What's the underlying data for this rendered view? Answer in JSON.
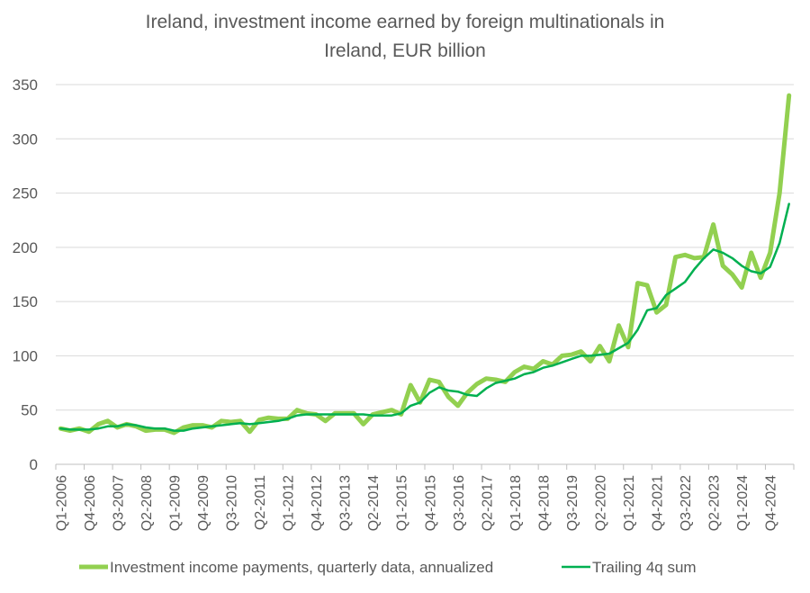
{
  "chart_data": {
    "type": "line",
    "title": "Ireland, investment income earned by foreign multinationals in Ireland, EUR billion",
    "title_lines": [
      "Ireland, investment income earned by foreign multinationals in Ireland, EUR billion"
    ],
    "ylim": [
      0,
      350
    ],
    "yticks": [
      0,
      50,
      100,
      150,
      200,
      250,
      300,
      350
    ],
    "x_tick_labels": [
      "Q1-2006",
      "Q4-2006",
      "Q3-2007",
      "Q2-2008",
      "Q1-2009",
      "Q4-2009",
      "Q3-2010",
      "Q2-2011",
      "Q1-2012",
      "Q4-2012",
      "Q3-2013",
      "Q2-2014",
      "Q1-2015",
      "Q4-2015",
      "Q3-2016",
      "Q2-2017",
      "Q1-2018",
      "Q4-2018",
      "Q3-2019",
      "Q2-2020",
      "Q1-2021",
      "Q4-2021",
      "Q3-2022",
      "Q2-2023",
      "Q1-2024",
      "Q4-2024"
    ],
    "grid": true,
    "legend_position": "bottom",
    "series": [
      {
        "name": "Investment income payments, quarterly data, annualized",
        "color": "#92d050",
        "values": [
          33,
          31,
          33,
          30,
          37,
          40,
          34,
          37,
          35,
          31,
          32,
          32,
          29,
          34,
          36,
          36,
          34,
          40,
          39,
          40,
          30,
          41,
          43,
          42,
          42,
          50,
          47,
          46,
          40,
          47,
          47,
          47,
          37,
          46,
          48,
          50,
          46,
          73,
          57,
          78,
          76,
          62,
          54,
          66,
          74,
          79,
          78,
          76,
          85,
          90,
          88,
          95,
          92,
          100,
          101,
          104,
          95,
          109,
          95,
          128,
          108,
          167,
          165,
          140,
          147,
          191,
          193,
          190,
          191,
          221,
          183,
          175,
          163,
          195,
          172,
          195,
          250,
          340
        ]
      },
      {
        "name": "Trailing 4q sum",
        "color": "#00b050",
        "values": [
          33,
          32,
          32,
          32,
          33,
          35,
          35,
          37,
          36,
          34,
          33,
          33,
          31,
          31,
          33,
          34,
          35,
          36,
          37,
          38,
          37,
          38,
          39,
          40,
          42,
          45,
          46,
          46,
          46,
          46,
          46,
          46,
          46,
          45,
          45,
          45,
          47,
          54,
          57,
          66,
          71,
          68,
          67,
          64,
          63,
          70,
          75,
          77,
          79,
          83,
          85,
          89,
          91,
          94,
          97,
          100,
          100,
          101,
          102,
          107,
          112,
          124,
          142,
          144,
          156,
          162,
          168,
          180,
          190,
          198,
          195,
          190,
          183,
          178,
          176,
          182,
          204,
          240
        ]
      }
    ]
  }
}
